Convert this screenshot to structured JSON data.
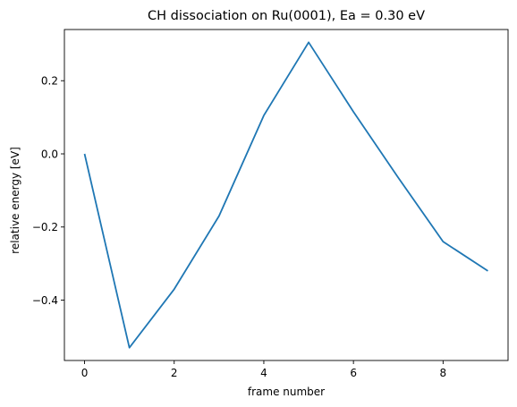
{
  "chart_data": {
    "type": "line",
    "title": "CH dissociation on Ru(0001), Ea = 0.30 eV",
    "xlabel": "frame number",
    "ylabel": "relative energy [eV]",
    "xlim": [
      -0.45,
      9.45
    ],
    "ylim": [
      -0.565,
      0.34
    ],
    "xticks": [
      0,
      2,
      4,
      6,
      8
    ],
    "yticks": [
      -0.4,
      -0.2,
      0.0,
      0.2
    ],
    "xtick_labels": [
      "0",
      "2",
      "4",
      "6",
      "8"
    ],
    "ytick_labels": [
      "−0.4",
      "−0.2",
      "0.0",
      "0.2"
    ],
    "grid": false,
    "series": [
      {
        "color": "#1f77b4",
        "x": [
          0,
          1,
          2,
          3,
          4,
          5,
          6,
          7,
          8,
          9
        ],
        "y": [
          0.0,
          -0.53,
          -0.37,
          -0.17,
          0.105,
          0.305,
          0.115,
          -0.065,
          -0.24,
          -0.32
        ]
      }
    ]
  }
}
